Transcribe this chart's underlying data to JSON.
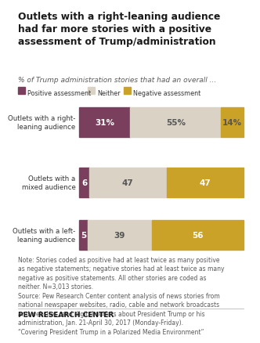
{
  "title": "Outlets with a right-leaning audience\nhad far more stories with a positive\nassessment of Trump/administration",
  "subtitle": "% of Trump administration stories that had an overall ...",
  "categories": [
    "Outlets with a right-\nleaning audience",
    "Outlets with a\nmixed audience",
    "Outlets with a left-\nleaning audience"
  ],
  "positive": [
    31,
    6,
    5
  ],
  "neither": [
    55,
    47,
    39
  ],
  "negative": [
    14,
    47,
    56
  ],
  "positive_color": "#7b3f5e",
  "neither_color": "#d9d2c5",
  "negative_color": "#c9a227",
  "positive_label": "Positive assessment",
  "neither_label": "Neither",
  "negative_label": "Negative assessment",
  "note": "Note: Stories coded as positive had at least twice as many positive\nas negative statements; negative stories had at least twice as many\nnegative as positive statements. All other stories are coded as\nneither. N=3,013 stories.\nSource: Pew Research Center content analysis of news stories from\nnational newspaper websites, radio, cable and network broadcasts\nand websites, and digital outlets about President Trump or his\nadministration, Jan. 21-April 30, 2017 (Monday-Friday).\n“Covering President Trump in a Polarized Media Environment”",
  "footer": "PEW RESEARCH CENTER",
  "title_color": "#1a1a1a",
  "subtitle_color": "#595959",
  "note_color": "#595959",
  "footer_color": "#1a1a1a",
  "background_color": "#ffffff"
}
